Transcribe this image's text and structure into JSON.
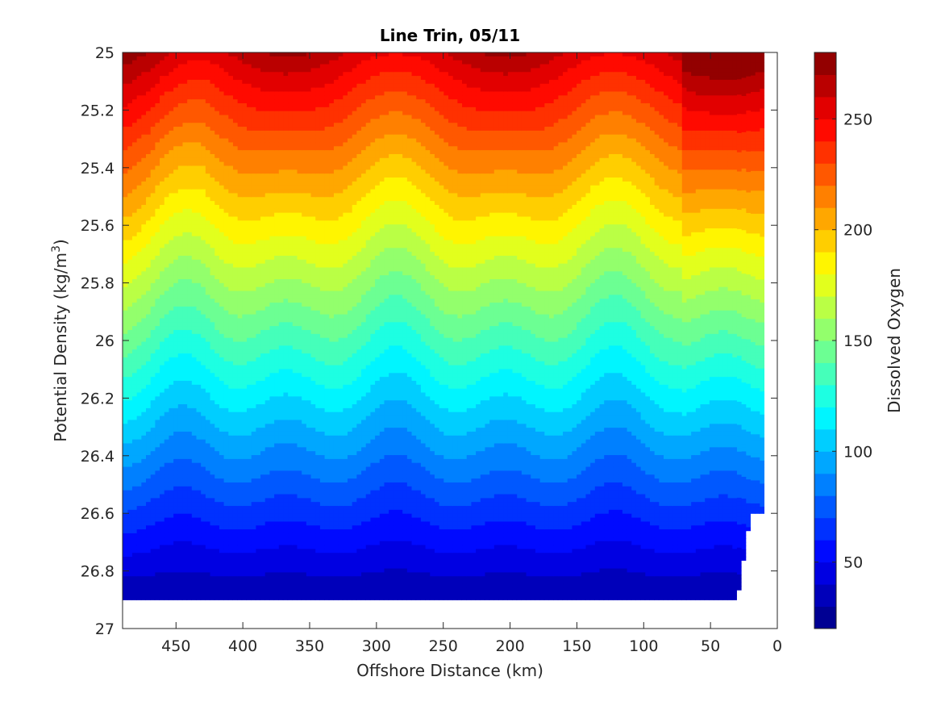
{
  "chart_data": {
    "type": "contour",
    "title": "Line Trin, 05/11",
    "xlabel": "Offshore Distance (km)",
    "ylabel_prefix": "Potential Density (kg/m",
    "ylabel_sup": "3",
    "ylabel_suffix": ")",
    "x_reversed": true,
    "y_reversed": true,
    "xlim": [
      0,
      490
    ],
    "ylim": [
      25,
      27
    ],
    "xticks": [
      450,
      400,
      350,
      300,
      250,
      200,
      150,
      100,
      50,
      0
    ],
    "xtick_labels": [
      "450",
      "400",
      "350",
      "300",
      "250",
      "200",
      "150",
      "100",
      "50",
      "0"
    ],
    "yticks": [
      25,
      25.2,
      25.4,
      25.6,
      25.8,
      26,
      26.2,
      26.4,
      26.6,
      26.8,
      27
    ],
    "ytick_labels": [
      "25",
      "25.2",
      "25.4",
      "25.6",
      "25.8",
      "26",
      "26.2",
      "26.4",
      "26.6",
      "26.8",
      "27"
    ],
    "colorbar": {
      "label": "Dissolved Oxygen",
      "range": [
        20,
        280
      ],
      "levels": [
        20,
        30,
        40,
        50,
        60,
        70,
        80,
        90,
        100,
        110,
        120,
        130,
        140,
        150,
        160,
        170,
        180,
        190,
        200,
        210,
        220,
        230,
        240,
        250,
        260,
        270,
        280
      ],
      "ticks": [
        50,
        100,
        150,
        200,
        250
      ],
      "tick_labels": [
        "50",
        "100",
        "150",
        "200",
        "250"
      ],
      "colormap": "jet"
    },
    "data_extent": {
      "x_range_km": [
        10,
        490
      ],
      "y_range": [
        25,
        26.9
      ]
    },
    "levels_note": "Dissolved oxygen decreases with density; ~240-260 at 25.0 down to ~30 at 26.9"
  }
}
